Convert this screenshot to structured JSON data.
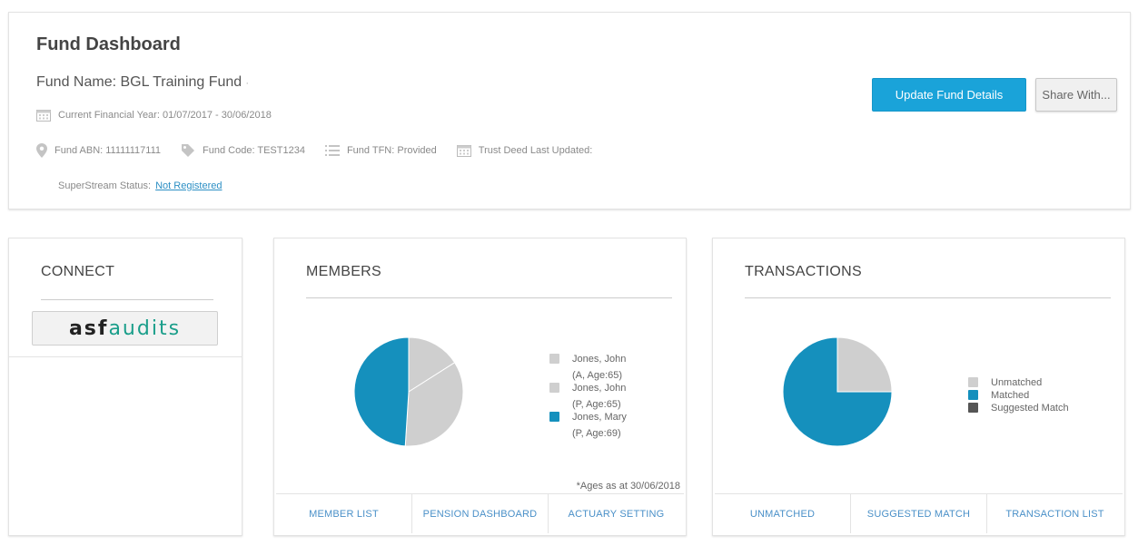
{
  "header": {
    "title": "Fund Dashboard",
    "fund_name": "Fund Name: BGL Training Fund",
    "financial_year": "Current Financial Year: 01/07/2017 - 30/06/2018",
    "abn": "Fund ABN: 11111117111",
    "fund_code": "Fund Code: TEST1234",
    "tfn": "Fund TFN: Provided",
    "trust_deed": "Trust Deed Last Updated:",
    "superstream_label": "SuperStream Status:",
    "superstream_value": "Not Registered",
    "update_button": "Update Fund Details",
    "share_button": "Share With..."
  },
  "connect": {
    "title": "CONNECT",
    "asf_logo_a": "asf",
    "asf_logo_b": "audits"
  },
  "members": {
    "title": "MEMBERS",
    "footnote": "*Ages as at 30/06/2018",
    "legend": [
      {
        "name": "Jones, John",
        "detail": "(A, Age:65)",
        "color": "#cfcfcf"
      },
      {
        "name": "Jones, John",
        "detail": "(P, Age:65)",
        "color": "#cfcfcf"
      },
      {
        "name": "Jones, Mary",
        "detail": "(P, Age:69)",
        "color": "#1590bd"
      }
    ],
    "footer": [
      "MEMBER LIST",
      "PENSION DASHBOARD",
      "ACTUARY SETTING"
    ]
  },
  "transactions": {
    "title": "TRANSACTIONS",
    "legend": [
      {
        "name": "Unmatched",
        "color": "#cfcfcf"
      },
      {
        "name": "Matched",
        "color": "#1590bd"
      },
      {
        "name": "Suggested Match",
        "color": "#555555"
      }
    ],
    "footer": [
      "UNMATCHED",
      "SUGGESTED MATCH",
      "TRANSACTION LIST"
    ]
  },
  "chart_data": [
    {
      "type": "pie",
      "categories": [
        "Jones, John (A, Age:65)",
        "Jones, John (P, Age:65)",
        "Jones, Mary (P, Age:69)"
      ],
      "values": [
        16,
        35,
        49
      ],
      "colors": [
        "#cfcfcf",
        "#cfcfcf",
        "#1590bd"
      ]
    },
    {
      "type": "pie",
      "categories": [
        "Unmatched",
        "Matched",
        "Suggested Match"
      ],
      "values": [
        25,
        75,
        0
      ],
      "colors": [
        "#cfcfcf",
        "#1590bd",
        "#555555"
      ]
    }
  ]
}
